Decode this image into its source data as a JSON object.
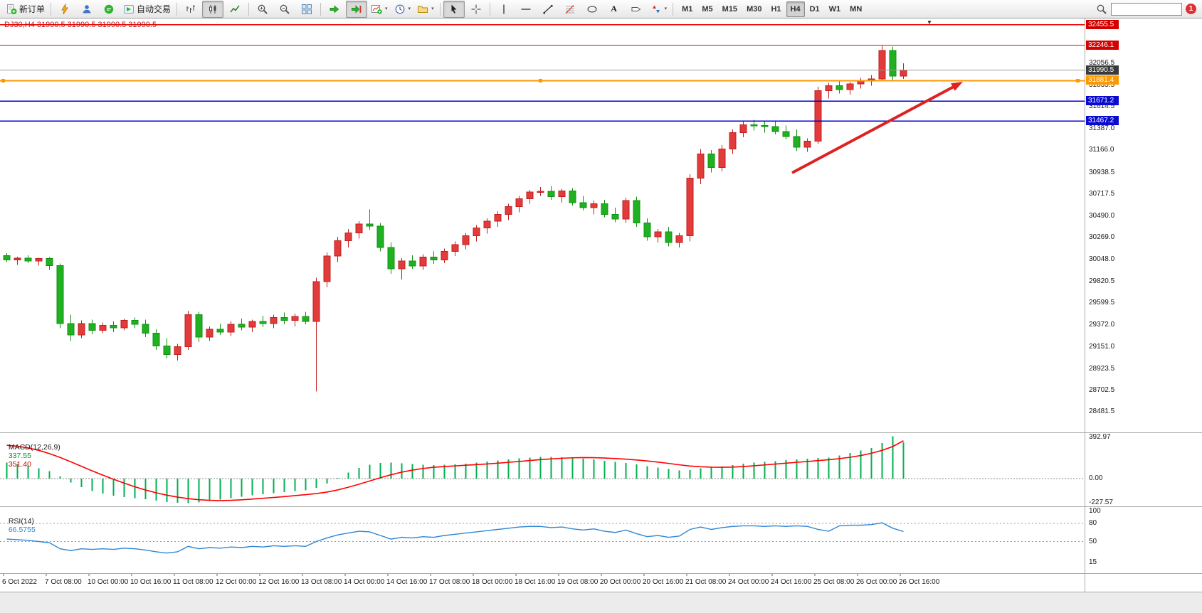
{
  "toolbar": {
    "new_order_label": "新订单",
    "auto_trading_label": "自动交易",
    "text_tool_label": "A",
    "caret_glyph": "▾",
    "timeframes": [
      "M1",
      "M5",
      "M15",
      "M30",
      "H1",
      "H4",
      "D1",
      "W1",
      "MN"
    ],
    "active_timeframe": "H4",
    "notification_count": "1",
    "search_value": ""
  },
  "chart_data": {
    "type": "candlestick+indicators",
    "symbol": "DJ30",
    "timeframe": "H4",
    "ohlc_line": "DJ30,H4 31990.5 31990.5 31990.5 31990.5",
    "shift_marker_glyph": "▼",
    "colors": {
      "up": "#e23b3b",
      "up_border": "#c01f1f",
      "down": "#21b021",
      "down_border": "#0f930f",
      "macd_hist": "#00b050",
      "macd_signal": "#ff0000",
      "rsi_line": "#2f86d6",
      "accent_red": "#f00000",
      "accent_blue": "#0000cd",
      "accent_orange": "#ff9800"
    },
    "candles": [
      [
        30085,
        30110,
        30020,
        30040
      ],
      [
        30040,
        30075,
        29990,
        30060
      ],
      [
        30060,
        30090,
        30010,
        30030
      ],
      [
        30030,
        30065,
        29985,
        30055
      ],
      [
        30055,
        30070,
        29940,
        29985
      ],
      [
        29985,
        30005,
        29340,
        29390
      ],
      [
        29390,
        29480,
        29210,
        29270
      ],
      [
        29270,
        29420,
        29240,
        29390
      ],
      [
        29390,
        29430,
        29280,
        29320
      ],
      [
        29320,
        29400,
        29290,
        29370
      ],
      [
        29370,
        29410,
        29300,
        29345
      ],
      [
        29345,
        29440,
        29320,
        29420
      ],
      [
        29420,
        29450,
        29340,
        29380
      ],
      [
        29380,
        29430,
        29250,
        29290
      ],
      [
        29290,
        29330,
        29120,
        29160
      ],
      [
        29160,
        29240,
        29030,
        29070
      ],
      [
        29070,
        29180,
        29010,
        29150
      ],
      [
        29150,
        29520,
        29120,
        29480
      ],
      [
        29480,
        29510,
        29200,
        29250
      ],
      [
        29250,
        29360,
        29210,
        29330
      ],
      [
        29330,
        29390,
        29270,
        29300
      ],
      [
        29300,
        29410,
        29260,
        29380
      ],
      [
        29380,
        29440,
        29320,
        29350
      ],
      [
        29350,
        29430,
        29300,
        29410
      ],
      [
        29410,
        29470,
        29350,
        29390
      ],
      [
        29390,
        29480,
        29340,
        29450
      ],
      [
        29450,
        29500,
        29380,
        29420
      ],
      [
        29420,
        29490,
        29360,
        29460
      ],
      [
        29460,
        29510,
        29380,
        29410
      ],
      [
        29410,
        29860,
        28690,
        29820
      ],
      [
        29820,
        30120,
        29760,
        30080
      ],
      [
        30080,
        30280,
        30020,
        30240
      ],
      [
        30240,
        30360,
        30170,
        30320
      ],
      [
        30320,
        30440,
        30260,
        30410
      ],
      [
        30410,
        30560,
        30350,
        30390
      ],
      [
        30390,
        30420,
        30130,
        30170
      ],
      [
        30170,
        30220,
        29900,
        29950
      ],
      [
        29950,
        30060,
        29840,
        30030
      ],
      [
        30030,
        30090,
        29950,
        29980
      ],
      [
        29980,
        30100,
        29940,
        30070
      ],
      [
        30070,
        30130,
        30000,
        30040
      ],
      [
        30040,
        30160,
        30010,
        30130
      ],
      [
        30130,
        30230,
        30080,
        30200
      ],
      [
        30200,
        30320,
        30150,
        30290
      ],
      [
        30290,
        30400,
        30230,
        30370
      ],
      [
        30370,
        30470,
        30310,
        30440
      ],
      [
        30440,
        30540,
        30380,
        30510
      ],
      [
        30510,
        30620,
        30450,
        30590
      ],
      [
        30590,
        30700,
        30530,
        30670
      ],
      [
        30670,
        30760,
        30620,
        30740
      ],
      [
        30740,
        30790,
        30700,
        30745
      ],
      [
        30745,
        30800,
        30660,
        30690
      ],
      [
        30690,
        30770,
        30630,
        30750
      ],
      [
        30750,
        30780,
        30600,
        30630
      ],
      [
        30630,
        30700,
        30550,
        30580
      ],
      [
        30580,
        30650,
        30510,
        30620
      ],
      [
        30620,
        30660,
        30480,
        30510
      ],
      [
        30510,
        30580,
        30430,
        30460
      ],
      [
        30460,
        30680,
        30420,
        30650
      ],
      [
        30650,
        30690,
        30380,
        30420
      ],
      [
        30420,
        30470,
        30240,
        30280
      ],
      [
        30280,
        30360,
        30220,
        30330
      ],
      [
        30330,
        30380,
        30180,
        30220
      ],
      [
        30220,
        30320,
        30170,
        30290
      ],
      [
        30290,
        30920,
        30230,
        30880
      ],
      [
        30880,
        31180,
        30820,
        31130
      ],
      [
        31130,
        31170,
        30940,
        30990
      ],
      [
        30990,
        31220,
        30950,
        31180
      ],
      [
        31180,
        31380,
        31130,
        31350
      ],
      [
        31350,
        31460,
        31300,
        31430
      ],
      [
        31430,
        31480,
        31370,
        31420
      ],
      [
        31420,
        31470,
        31350,
        31410
      ],
      [
        31410,
        31470,
        31330,
        31360
      ],
      [
        31360,
        31420,
        31280,
        31310
      ],
      [
        31310,
        31380,
        31160,
        31200
      ],
      [
        31200,
        31290,
        31150,
        31260
      ],
      [
        31260,
        31820,
        31230,
        31780
      ],
      [
        31780,
        31860,
        31700,
        31830
      ],
      [
        31830,
        31880,
        31750,
        31790
      ],
      [
        31790,
        31870,
        31740,
        31850
      ],
      [
        31850,
        31910,
        31800,
        31880
      ],
      [
        31880,
        31940,
        31830,
        31900
      ],
      [
        31900,
        32240,
        31880,
        32190
      ],
      [
        32190,
        32230,
        31890,
        31930
      ],
      [
        31930,
        32060,
        31900,
        31990.5
      ]
    ],
    "price_ticks": [
      "32056.5",
      "31835.5",
      "31614.5",
      "31387.0",
      "31166.0",
      "30938.5",
      "30717.5",
      "30490.0",
      "30269.0",
      "30048.0",
      "29820.5",
      "29599.5",
      "29372.0",
      "29151.0",
      "28923.5",
      "28702.5",
      "28481.5"
    ],
    "badges": [
      {
        "text": "32455.5",
        "price": 32455.5,
        "color": "#d40000"
      },
      {
        "text": "32246.1",
        "price": 32246.1,
        "color": "#d40000"
      },
      {
        "text": "31990.5",
        "price": 31990.5,
        "color": "#3a3a3a"
      },
      {
        "text": "31881.4",
        "price": 31881.4,
        "color": "#ff9800"
      },
      {
        "text": "31671.2",
        "price": 31671.2,
        "color": "#0b0bcf"
      },
      {
        "text": "31467.2",
        "price": 31467.2,
        "color": "#0b0bcf"
      }
    ],
    "hlines": [
      {
        "price": 32455.5,
        "color": "#f00000",
        "width": 1.4
      },
      {
        "price": 32246.1,
        "color": "#f00000",
        "width": 1.4
      },
      {
        "price": 31990.5,
        "color": "#9a9a9a",
        "width": 1
      },
      {
        "price": 31881.4,
        "color": "#ff9800",
        "width": 2,
        "selected": true
      },
      {
        "price": 31671.2,
        "color": "#0000cd",
        "width": 1.4
      },
      {
        "price": 31467.2,
        "color": "#0000cd",
        "width": 1.4
      }
    ],
    "arrow": {
      "from": [
        1113,
        243
      ],
      "to": [
        1353,
        115
      ],
      "color": "#dd2222"
    },
    "macd": {
      "label": "MACD(12,26,9)",
      "value_main": "337.55",
      "value_signal": "351.40",
      "axis_labels": [
        "392.97",
        "0.00",
        "-227.57"
      ],
      "histogram": [
        150,
        135,
        118,
        96,
        70,
        20,
        -35,
        -80,
        -115,
        -140,
        -158,
        -170,
        -180,
        -192,
        -205,
        -218,
        -226,
        -227.57,
        -220,
        -208,
        -194,
        -180,
        -167,
        -155,
        -144,
        -134,
        -125,
        -117,
        -110,
        -85,
        -45,
        5,
        55,
        100,
        130,
        145,
        148,
        142,
        135,
        130,
        127,
        128,
        132,
        139,
        148,
        158,
        168,
        178,
        188,
        196,
        200,
        200,
        198,
        193,
        186,
        177,
        166,
        154,
        145,
        132,
        116,
        102,
        88,
        76,
        80,
        95,
        102,
        112,
        125,
        138,
        148,
        155,
        162,
        170,
        178,
        186,
        190,
        195,
        215,
        238,
        260,
        285,
        330,
        392.97,
        337.55
      ],
      "signal": [
        310,
        300,
        285,
        262,
        232,
        196,
        156,
        114,
        72,
        32,
        -6,
        -42,
        -76,
        -106,
        -132,
        -154,
        -172,
        -186,
        -196,
        -202,
        -204,
        -202,
        -197,
        -190,
        -183,
        -175,
        -167,
        -158,
        -149,
        -139,
        -125,
        -105,
        -80,
        -52,
        -22,
        8,
        36,
        60,
        79,
        94,
        105,
        112,
        118,
        124,
        130,
        136,
        143,
        151,
        159,
        168,
        176,
        183,
        189,
        193,
        195,
        194,
        191,
        186,
        180,
        173,
        164,
        153,
        141,
        128,
        117,
        110,
        106,
        105,
        107,
        112,
        119,
        127,
        135,
        143,
        151,
        159,
        167,
        175,
        185,
        198,
        214,
        235,
        262,
        298,
        351.4
      ]
    },
    "rsi": {
      "label": "RSI(14)",
      "value": "66.5755",
      "axis_labels": [
        "100",
        "80",
        "50",
        "15"
      ],
      "levels": [
        80,
        50
      ],
      "values": [
        54,
        53,
        52,
        50,
        48,
        38,
        35,
        38,
        37,
        38,
        37,
        39,
        38,
        36,
        33,
        31,
        33,
        42,
        38,
        40,
        39,
        41,
        40,
        42,
        41,
        43,
        42,
        43,
        42,
        50,
        56,
        61,
        64,
        67,
        66,
        60,
        54,
        57,
        56,
        58,
        57,
        60,
        62,
        64,
        66,
        68,
        70,
        72,
        74,
        75,
        75,
        73,
        74,
        71,
        69,
        71,
        67,
        65,
        69,
        63,
        58,
        60,
        57,
        59,
        70,
        74,
        70,
        73,
        75,
        76,
        76,
        75,
        76,
        75,
        76,
        75,
        70,
        67,
        76,
        77,
        77,
        78,
        81,
        72,
        66.5755
      ]
    },
    "time_labels": [
      "6 Oct 2022",
      "7 Oct 08:00",
      "10 Oct 00:00",
      "10 Oct 16:00",
      "11 Oct 08:00",
      "12 Oct 00:00",
      "12 Oct 16:00",
      "13 Oct 08:00",
      "14 Oct 00:00",
      "14 Oct 16:00",
      "17 Oct 08:00",
      "18 Oct 00:00",
      "18 Oct 16:00",
      "19 Oct 08:00",
      "20 Oct 00:00",
      "20 Oct 16:00",
      "21 Oct 08:00",
      "24 Oct 00:00",
      "24 Oct 16:00",
      "25 Oct 08:00",
      "26 Oct 00:00",
      "26 Oct 16:00"
    ]
  }
}
